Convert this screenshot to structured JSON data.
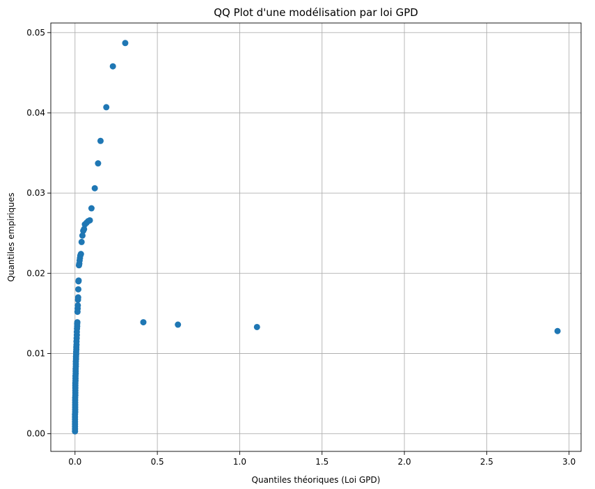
{
  "chart_data": {
    "type": "scatter",
    "title": "QQ Plot d'une modélisation par loi GPD",
    "xlabel": "Quantiles théoriques (Loi GPD)",
    "ylabel": "Quantiles empiriques",
    "xlim": [
      -0.147,
      3.073
    ],
    "ylim": [
      -0.0022,
      0.0512
    ],
    "xticks": [
      0.0,
      0.5,
      1.0,
      1.5,
      2.0,
      2.5,
      3.0
    ],
    "xtick_labels": [
      "0.0",
      "0.5",
      "1.0",
      "1.5",
      "2.0",
      "2.5",
      "3.0"
    ],
    "yticks": [
      0.0,
      0.01,
      0.02,
      0.03,
      0.04,
      0.05
    ],
    "ytick_labels": [
      "0.00",
      "0.01",
      "0.02",
      "0.03",
      "0.04",
      "0.05"
    ],
    "grid": true,
    "marker_color": "#1f77b4",
    "series": [
      {
        "x": [
          0.0,
          0.0,
          0.0,
          0.0,
          0.0,
          0.0,
          0.0,
          0.0,
          0.001,
          0.001,
          0.001,
          0.001,
          0.001,
          0.001,
          0.001,
          0.002,
          0.002,
          0.002,
          0.002,
          0.002,
          0.002,
          0.003,
          0.003,
          0.003,
          0.004,
          0.004,
          0.004,
          0.005,
          0.005,
          0.005,
          0.006,
          0.006,
          0.007,
          0.007,
          0.008,
          0.008,
          0.009,
          0.009,
          0.01,
          0.011,
          0.011,
          0.012,
          0.013,
          0.013,
          0.014,
          0.015,
          0.016,
          0.017,
          0.018,
          0.019,
          0.02,
          0.021,
          0.022,
          0.024,
          0.026,
          0.028,
          0.03,
          0.032,
          0.036,
          0.04,
          0.045,
          0.05,
          0.055,
          0.06,
          0.07,
          0.08,
          0.09,
          0.1,
          0.12,
          0.14,
          0.155,
          0.19,
          0.23,
          0.305,
          0.415,
          0.625,
          1.105,
          2.93
        ],
        "y": [
          0.0003,
          0.0006,
          0.0009,
          0.0012,
          0.0015,
          0.0018,
          0.0021,
          0.0024,
          0.0027,
          0.003,
          0.0033,
          0.0036,
          0.0039,
          0.0042,
          0.0045,
          0.0048,
          0.0051,
          0.0054,
          0.0057,
          0.006,
          0.0063,
          0.0066,
          0.0069,
          0.0072,
          0.0075,
          0.0078,
          0.0081,
          0.0084,
          0.0087,
          0.009,
          0.0093,
          0.0096,
          0.0099,
          0.0102,
          0.0105,
          0.0108,
          0.0111,
          0.0115,
          0.0119,
          0.0123,
          0.0127,
          0.0131,
          0.0134,
          0.0137,
          0.0139,
          0.0152,
          0.0156,
          0.016,
          0.0167,
          0.017,
          0.018,
          0.019,
          0.0191,
          0.021,
          0.0212,
          0.0216,
          0.0219,
          0.0222,
          0.0224,
          0.0239,
          0.0247,
          0.0253,
          0.0255,
          0.0261,
          0.0263,
          0.0265,
          0.0266,
          0.0281,
          0.0306,
          0.0337,
          0.0365,
          0.0407,
          0.0458,
          0.0487,
          0.0139,
          0.0136,
          0.0133,
          0.0128
        ]
      }
    ]
  }
}
